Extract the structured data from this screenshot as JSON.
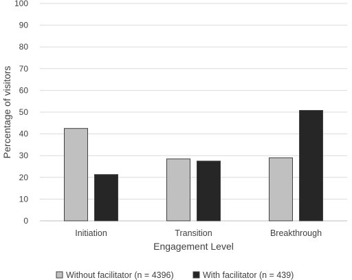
{
  "chart_data": {
    "type": "bar",
    "categories": [
      "Initiation",
      "Transition",
      "Breakthrough"
    ],
    "series": [
      {
        "name": "Without facilitator (n = 4396)",
        "values": [
          42.5,
          28.5,
          29.0
        ],
        "color": "#c0c0c0"
      },
      {
        "name": "With facilitator (n = 439)",
        "values": [
          21.3,
          27.5,
          50.8
        ],
        "color": "#262626"
      }
    ],
    "xlabel": "Engagement Level",
    "ylabel": "Percentage of visitors",
    "ylim": [
      0,
      100
    ],
    "yticks": [
      "0",
      "10",
      "20",
      "30",
      "40",
      "50",
      "60",
      "70",
      "80",
      "90",
      "100"
    ],
    "grid": true,
    "legend_position": "bottom"
  }
}
